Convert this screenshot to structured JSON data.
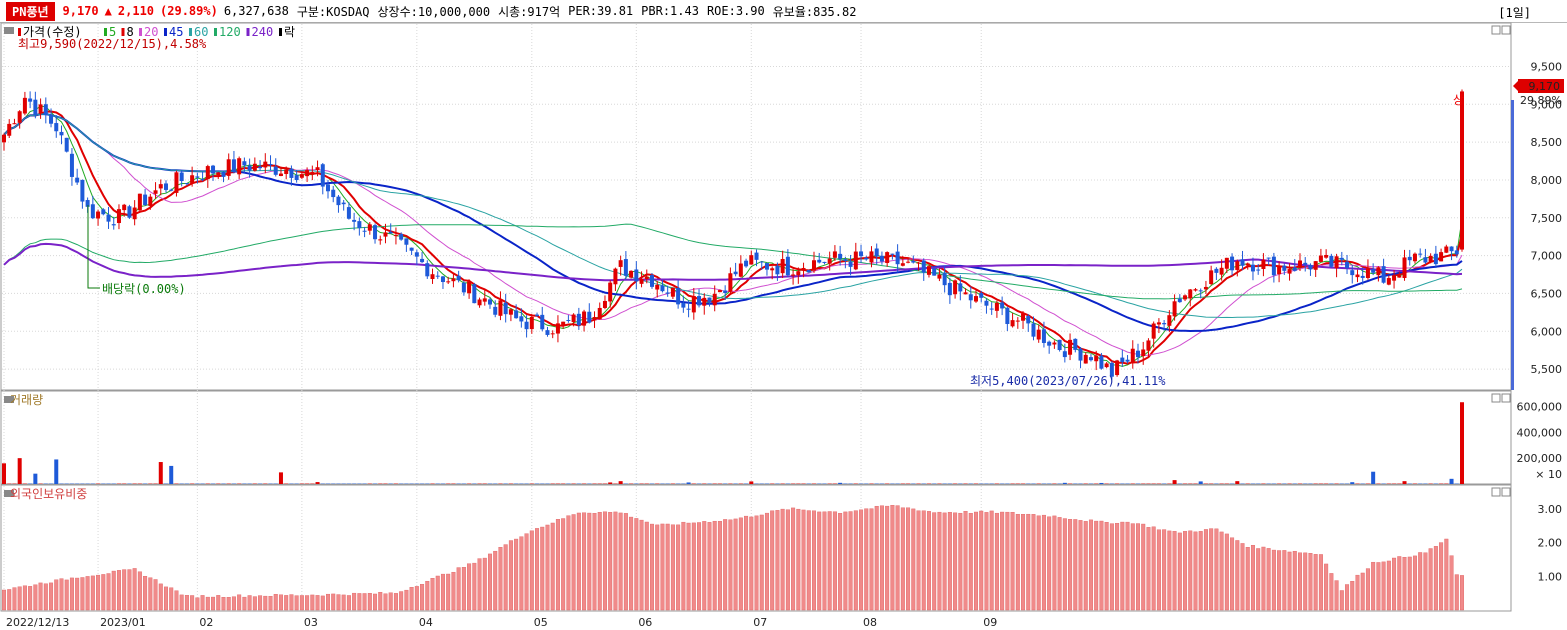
{
  "header": {
    "stock_name": "PN풍년",
    "price": "9,170",
    "arrow": "▲",
    "change": "2,110",
    "change_pct": "(29.89%)",
    "volume": "6,327,638",
    "market": "구분:KOSDAQ",
    "shares": "상장수:10,000,000",
    "market_cap": "시총:917억",
    "per": "PER:39.81",
    "pbr": "PBR:1.43",
    "roe": "ROE:3.90",
    "reserve": "유보율:835.82",
    "period": "[1일]"
  },
  "price_panel": {
    "legend": [
      {
        "label": "가격(수정)",
        "color": "#e00000"
      },
      {
        "label": "5",
        "color": "#22aa22"
      },
      {
        "label": "8",
        "color": "#e00000"
      },
      {
        "label": "20",
        "color": "#d050d0"
      },
      {
        "label": "45",
        "color": "#0a24c8"
      },
      {
        "label": "60",
        "color": "#2aa3a3"
      },
      {
        "label": "120",
        "color": "#22aa66"
      },
      {
        "label": "240",
        "color": "#7a22c8"
      },
      {
        "label": "락",
        "color": "#000000"
      }
    ],
    "high_note": "최고9,590(2022/12/15),4.58%",
    "low_note": "최저5,400(2023/07/26),41.11%",
    "dividend_note": "배당락(0.00%)",
    "limit_up_tag": "상",
    "price_tag": "9,170",
    "price_tag_pct": "29.89%",
    "y_ticks": [
      "9,500",
      "9,000",
      "8,500",
      "8,000",
      "7,500",
      "7,000",
      "6,500",
      "6,000",
      "5,500"
    ]
  },
  "volume_panel": {
    "title": "거래량",
    "y_ticks": [
      "600,000",
      "400,000",
      "200,000"
    ],
    "unit": "× 10"
  },
  "foreign_panel": {
    "title": "외국인보유비중",
    "y_ticks": [
      "3.00",
      "2.00",
      "1.00"
    ]
  },
  "x_axis": {
    "labels": [
      "2022/12/13",
      "2023/01",
      "02",
      "03",
      "04",
      "05",
      "06",
      "07",
      "08",
      "09"
    ]
  },
  "chart_data": {
    "type": "candlestick",
    "title": "PN풍년 daily",
    "price_range": [
      5250,
      9850
    ],
    "close_keypoints": [
      [
        0,
        8600
      ],
      [
        4,
        9100
      ],
      [
        10,
        8700
      ],
      [
        16,
        7600
      ],
      [
        22,
        7500
      ],
      [
        30,
        7900
      ],
      [
        38,
        8100
      ],
      [
        46,
        8200
      ],
      [
        54,
        8150
      ],
      [
        60,
        8050
      ],
      [
        66,
        7500
      ],
      [
        74,
        7200
      ],
      [
        82,
        6800
      ],
      [
        90,
        6500
      ],
      [
        98,
        6150
      ],
      [
        106,
        6050
      ],
      [
        112,
        6200
      ],
      [
        118,
        6850
      ],
      [
        124,
        6700
      ],
      [
        130,
        6400
      ],
      [
        136,
        6500
      ],
      [
        142,
        6900
      ],
      [
        150,
        6850
      ],
      [
        158,
        6950
      ],
      [
        166,
        6950
      ],
      [
        172,
        6900
      ],
      [
        178,
        6700
      ],
      [
        186,
        6400
      ],
      [
        194,
        6150
      ],
      [
        202,
        5800
      ],
      [
        208,
        5700
      ],
      [
        212,
        5450
      ],
      [
        218,
        5800
      ],
      [
        224,
        6400
      ],
      [
        230,
        6700
      ],
      [
        236,
        6950
      ],
      [
        244,
        6850
      ],
      [
        252,
        6900
      ],
      [
        258,
        6850
      ],
      [
        264,
        6700
      ],
      [
        270,
        6950
      ],
      [
        276,
        7000
      ],
      [
        278,
        7060
      ],
      [
        279,
        9170
      ]
    ],
    "ma_periods": [
      5,
      8,
      20,
      45,
      60,
      120,
      240
    ],
    "volume_range": [
      0,
      650000
    ],
    "volume_base": 3000,
    "volume_spikes": [
      [
        0,
        160000
      ],
      [
        3,
        200000
      ],
      [
        6,
        80000
      ],
      [
        10,
        190000
      ],
      [
        30,
        170000
      ],
      [
        32,
        140000
      ],
      [
        53,
        90000
      ],
      [
        60,
        15000
      ],
      [
        116,
        12000
      ],
      [
        118,
        22000
      ],
      [
        131,
        12000
      ],
      [
        143,
        20000
      ],
      [
        160,
        9000
      ],
      [
        203,
        9000
      ],
      [
        210,
        8000
      ],
      [
        224,
        30000
      ],
      [
        229,
        20000
      ],
      [
        236,
        22000
      ],
      [
        258,
        14000
      ],
      [
        262,
        95000
      ],
      [
        268,
        22000
      ],
      [
        277,
        40000
      ],
      [
        279,
        632763
      ]
    ],
    "foreign_range": [
      0,
      3.5
    ],
    "foreign_keypoints": [
      [
        0,
        0.6
      ],
      [
        15,
        1.0
      ],
      [
        25,
        1.2
      ],
      [
        35,
        0.4
      ],
      [
        60,
        0.45
      ],
      [
        75,
        0.5
      ],
      [
        90,
        1.4
      ],
      [
        100,
        2.3
      ],
      [
        110,
        2.9
      ],
      [
        118,
        2.9
      ],
      [
        125,
        2.5
      ],
      [
        140,
        2.7
      ],
      [
        150,
        3.0
      ],
      [
        160,
        2.9
      ],
      [
        170,
        3.1
      ],
      [
        178,
        2.9
      ],
      [
        190,
        2.9
      ],
      [
        200,
        2.8
      ],
      [
        210,
        2.6
      ],
      [
        216,
        2.6
      ],
      [
        224,
        2.3
      ],
      [
        232,
        2.4
      ],
      [
        238,
        1.9
      ],
      [
        246,
        1.75
      ],
      [
        252,
        1.65
      ],
      [
        256,
        0.6
      ],
      [
        262,
        1.4
      ],
      [
        272,
        1.7
      ],
      [
        276,
        2.1
      ],
      [
        278,
        1.05
      ],
      [
        279,
        1.0
      ]
    ],
    "n_days": 280,
    "x_month_starts": [
      0,
      18,
      37,
      57,
      79,
      101,
      121,
      143,
      164,
      187
    ]
  }
}
